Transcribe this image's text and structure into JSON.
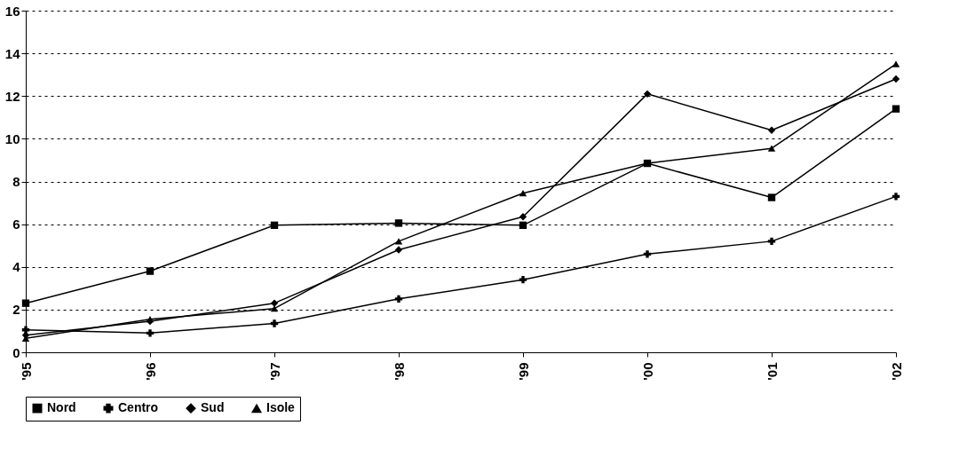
{
  "chart_data": {
    "type": "line",
    "categories": [
      "'95",
      "'96",
      "'97",
      "'98",
      "'99",
      "'00",
      "'01",
      "'02"
    ],
    "series": [
      {
        "name": "Nord",
        "color": "#000000",
        "marker": "square",
        "values": [
          2.3,
          3.8,
          5.95,
          6.05,
          5.95,
          8.85,
          7.25,
          11.4
        ]
      },
      {
        "name": "Centro",
        "color": "#000000",
        "marker": "cross",
        "values": [
          1.05,
          0.9,
          1.35,
          2.5,
          3.4,
          4.6,
          5.2,
          7.3
        ]
      },
      {
        "name": "Sud",
        "color": "#000000",
        "marker": "diamond",
        "values": [
          0.8,
          1.45,
          2.3,
          4.8,
          6.35,
          12.1,
          10.4,
          12.8
        ]
      },
      {
        "name": "Isole",
        "color": "#000000",
        "marker": "triangle",
        "values": [
          0.65,
          1.55,
          2.05,
          5.2,
          7.45,
          8.85,
          9.55,
          13.5
        ]
      }
    ],
    "ylim": [
      0,
      16
    ],
    "yticks": [
      0,
      2,
      4,
      6,
      8,
      10,
      12,
      14,
      16
    ],
    "grid": "y",
    "legend": "bottom",
    "line_style": "solid"
  }
}
